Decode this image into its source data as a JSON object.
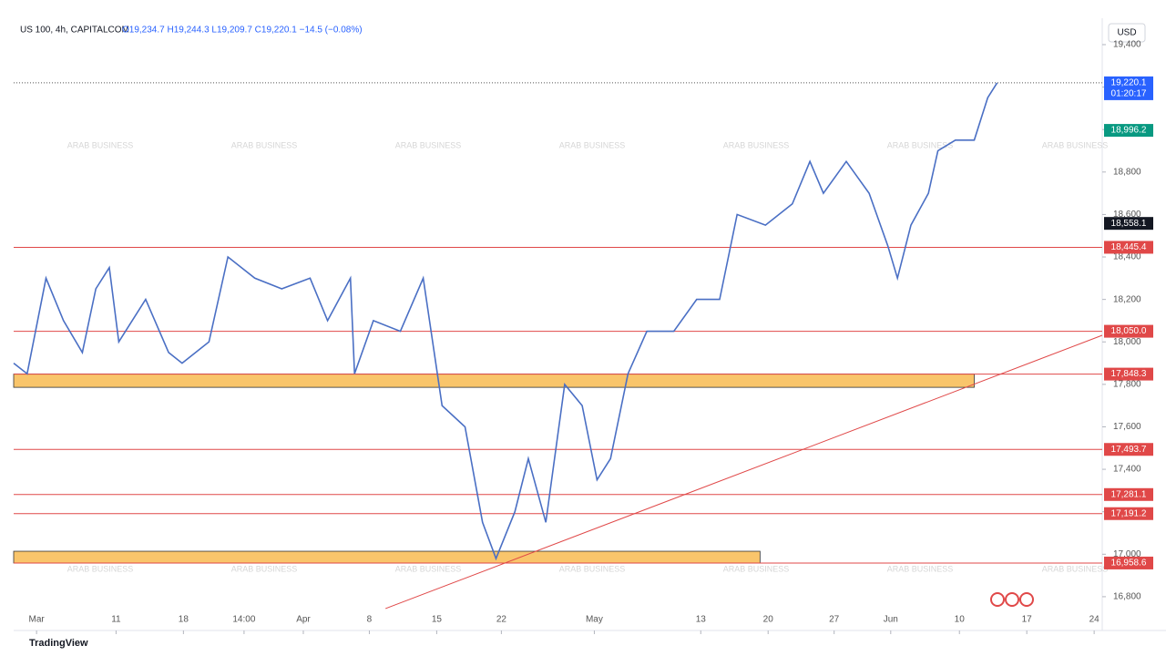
{
  "chart_data": {
    "type": "line",
    "title": "US 100, 4h, CAPITALCOM",
    "subtitle": "O19,234.7  H19,244.3  L19,209.7  C19,220.1  −14.5 (−0.08%)",
    "currency": "USD",
    "x": [
      -1.7,
      -0.7,
      0.7,
      2,
      3.4,
      4.4,
      5.4,
      6.1,
      8.1,
      9.8,
      10.8,
      12.8,
      14.2,
      16.2,
      18.2,
      20.3,
      21.6,
      23.3,
      23.6,
      25,
      27,
      28.7,
      30.1,
      31.8,
      33.1,
      34.1,
      35.5,
      36.5,
      37.8,
      39.2,
      40.5,
      41.6,
      42.6,
      43.9,
      45.3,
      47.3,
      49,
      50.7,
      52,
      54.1,
      56.1,
      57.4,
      58.4,
      60.1,
      61.8,
      63.2,
      63.9,
      64.9,
      66.2,
      66.9,
      68.2,
      69.6,
      70.6,
      71.3
    ],
    "values": [
      17900,
      17850,
      18300,
      18100,
      17950,
      18250,
      18350,
      18000,
      18200,
      17950,
      17900,
      18000,
      18400,
      18300,
      18250,
      18300,
      18100,
      18300,
      17850,
      18100,
      18050,
      18300,
      17700,
      17600,
      17150,
      16980,
      17200,
      17450,
      17150,
      17800,
      17700,
      17350,
      17450,
      17850,
      18050,
      18050,
      18200,
      18200,
      18600,
      18550,
      18650,
      18850,
      18700,
      18850,
      18700,
      18450,
      18300,
      18550,
      18700,
      18900,
      18950,
      18950,
      19150,
      19220
    ],
    "color": "#4a6fc4",
    "xlim": [
      -1.7,
      79.1
    ],
    "xticks": [
      {
        "value": 0,
        "label": "Mar"
      },
      {
        "value": 5.9,
        "label": "11"
      },
      {
        "value": 10.9,
        "label": "18"
      },
      {
        "value": 15.4,
        "label": "14:00"
      },
      {
        "value": 19.8,
        "label": "Apr"
      },
      {
        "value": 24.7,
        "label": "8"
      },
      {
        "value": 29.7,
        "label": "15"
      },
      {
        "value": 34.5,
        "label": "22"
      },
      {
        "value": 41.4,
        "label": "May"
      },
      {
        "value": 49.3,
        "label": "13"
      },
      {
        "value": 54.3,
        "label": "20"
      },
      {
        "value": 59.2,
        "label": "27"
      },
      {
        "value": 63.4,
        "label": "Jun"
      },
      {
        "value": 68.5,
        "label": "10"
      },
      {
        "value": 73.5,
        "label": "17"
      },
      {
        "value": 78.5,
        "label": "24"
      }
    ],
    "ylim": [
      16658,
      19490
    ],
    "yticks": [
      {
        "value": 16800,
        "label": "16,800"
      },
      {
        "value": 17000,
        "label": "17,000"
      },
      {
        "value": 17200,
        "label": "17,200"
      },
      {
        "value": 17400,
        "label": "17,400"
      },
      {
        "value": 17600,
        "label": "17,600"
      },
      {
        "value": 17800,
        "label": "17,800"
      },
      {
        "value": 18000,
        "label": "18,000"
      },
      {
        "value": 18200,
        "label": "18,200"
      },
      {
        "value": 18400,
        "label": "18,400"
      },
      {
        "value": 18600,
        "label": "18,600"
      },
      {
        "value": 18800,
        "label": "18,800"
      },
      {
        "value": 19000,
        "label": "19,000"
      },
      {
        "value": 19200,
        "label": "19,200"
      },
      {
        "value": 19400,
        "label": "19,400"
      }
    ],
    "levels": [
      {
        "value": 18445.4,
        "label": "18,445.4"
      },
      {
        "value": 18050.0,
        "label": "18,050.0"
      },
      {
        "value": 17848.3,
        "label": "17,848.3"
      },
      {
        "value": 17493.7,
        "label": "17,493.7"
      },
      {
        "value": 17281.1,
        "label": "17,281.1"
      },
      {
        "value": 17191.2,
        "label": "17,191.2"
      },
      {
        "value": 16958.6,
        "label": "16,958.6"
      }
    ],
    "level_color": "#e04848",
    "zones": [
      {
        "high": 17848.3,
        "low": 17786,
        "x_end": 69.6
      },
      {
        "high": 17014,
        "low": 16958.6,
        "x_end": 53.7
      }
    ],
    "zone_color": "#f9c56b",
    "trendline": {
      "x": [
        25.9,
        79.1
      ],
      "y": [
        16744,
        18031
      ]
    },
    "price_labels": [
      {
        "value": 19220.1,
        "label": "19,220.1",
        "countdown": "01:20:17",
        "color": "#2962ff"
      },
      {
        "value": 18996.2,
        "label": "18,996.2",
        "color": "#089981"
      },
      {
        "value": 18558.1,
        "label": "18,558.1",
        "color": "#131722"
      }
    ]
  },
  "watermark": "ARAB BUSINESS",
  "branding": "TradingView"
}
